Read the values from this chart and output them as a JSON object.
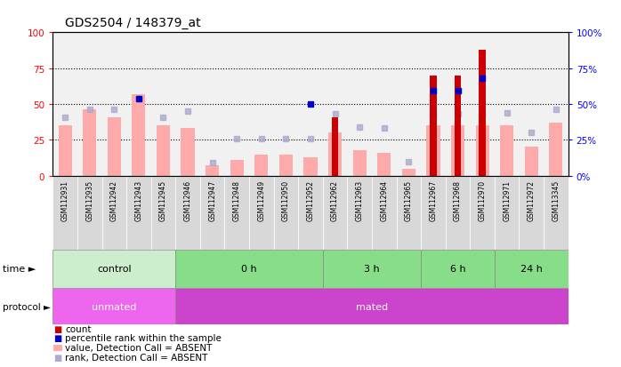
{
  "title": "GDS2504 / 148379_at",
  "samples": [
    "GSM112931",
    "GSM112935",
    "GSM112942",
    "GSM112943",
    "GSM112945",
    "GSM112946",
    "GSM112947",
    "GSM112948",
    "GSM112949",
    "GSM112950",
    "GSM112952",
    "GSM112962",
    "GSM112963",
    "GSM112964",
    "GSM112965",
    "GSM112967",
    "GSM112968",
    "GSM112970",
    "GSM112971",
    "GSM112972",
    "GSM113345"
  ],
  "value_absent": [
    35,
    46,
    41,
    57,
    35,
    33,
    7,
    11,
    15,
    15,
    13,
    30,
    18,
    16,
    5,
    35,
    35,
    35,
    35,
    20,
    37
  ],
  "rank_absent": [
    41,
    46,
    46,
    54,
    41,
    45,
    9,
    26,
    26,
    26,
    26,
    43,
    34,
    33,
    10,
    44,
    43,
    43,
    44,
    30,
    46
  ],
  "count": [
    0,
    0,
    0,
    0,
    0,
    0,
    0,
    0,
    0,
    0,
    0,
    41,
    0,
    0,
    0,
    70,
    70,
    88,
    0,
    0,
    0
  ],
  "percentile_rank": [
    0,
    0,
    0,
    54,
    0,
    0,
    0,
    0,
    0,
    0,
    50,
    0,
    0,
    0,
    0,
    59,
    59,
    68,
    0,
    0,
    0
  ],
  "time_groups": [
    {
      "label": "control",
      "start": 0,
      "end": 5
    },
    {
      "label": "0 h",
      "start": 5,
      "end": 11
    },
    {
      "label": "3 h",
      "start": 11,
      "end": 15
    },
    {
      "label": "6 h",
      "start": 15,
      "end": 18
    },
    {
      "label": "24 h",
      "start": 18,
      "end": 21
    }
  ],
  "protocol_groups": [
    {
      "label": "unmated",
      "start": 0,
      "end": 5
    },
    {
      "label": "mated",
      "start": 5,
      "end": 21
    }
  ],
  "ylim": [
    0,
    100
  ],
  "yticks": [
    0,
    25,
    50,
    75,
    100
  ],
  "value_color": "#ffaaaa",
  "rank_color": "#aaaacc",
  "count_color": "#cc0000",
  "percentile_color": "#0000cc",
  "time_control_color": "#cceecc",
  "time_other_color": "#88dd88",
  "protocol_unmated_color": "#ee66ee",
  "protocol_mated_color": "#cc44cc",
  "legend_items": [
    {
      "color": "#cc0000",
      "shape": "sq",
      "label": "count"
    },
    {
      "color": "#0000cc",
      "shape": "sq",
      "label": "percentile rank within the sample"
    },
    {
      "color": "#ffaaaa",
      "shape": "rect",
      "label": "value, Detection Call = ABSENT"
    },
    {
      "color": "#aaaacc",
      "shape": "sq",
      "label": "rank, Detection Call = ABSENT"
    }
  ]
}
